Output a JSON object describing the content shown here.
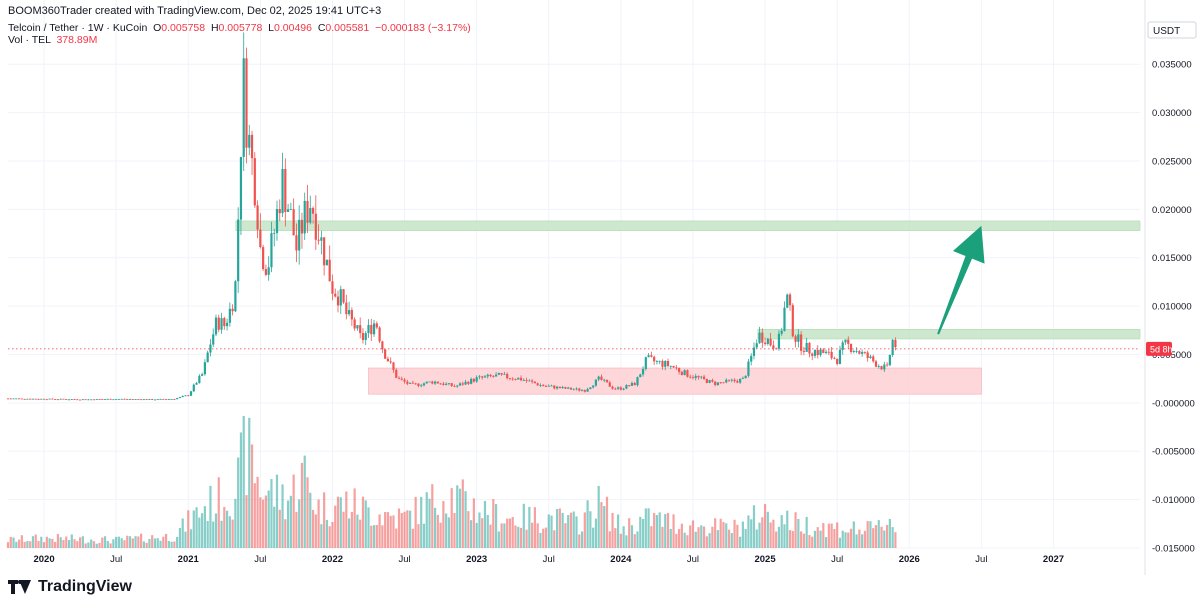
{
  "header": {
    "created_by": "BOOM360Trader created with TradingView.com, Dec 02, 2025 19:41 UTC+3"
  },
  "legend": {
    "symbol": "Telcoin / Tether · 1W · KuCoin",
    "o_label": "O",
    "o_value": "0.005758",
    "h_label": "H",
    "h_value": "0.005778",
    "l_label": "L",
    "l_value": "0.00496",
    "c_label": "C",
    "c_value": "0.005581",
    "change": "−0.000183 (−3.17%)",
    "vol_label": "Vol · TEL",
    "vol_value": "378.89M"
  },
  "price_axis": {
    "currency": "USDT",
    "ticks": [
      "0.035000",
      "0.030000",
      "0.025000",
      "0.020000",
      "0.015000",
      "0.010000",
      "0.005000",
      "-0.000000",
      "-0.005000",
      "-0.010000",
      "-0.015000"
    ],
    "last_price_tag": "5d 8h"
  },
  "time_axis": {
    "labels": [
      "2020",
      "Jul",
      "2021",
      "Jul",
      "2022",
      "Jul",
      "2023",
      "Jul",
      "2024",
      "Jul",
      "2025",
      "Jul",
      "2026",
      "Jul",
      "2027"
    ]
  },
  "footer": {
    "brand": "TradingView"
  },
  "colors": {
    "up": "#26a69a",
    "down": "#ef5350",
    "resistance_zone": "#c8e6c9",
    "support_zone": "#fdd3d7",
    "arrow": "#1aa07a",
    "last_price_tag": "#f23645"
  },
  "chart_data": {
    "type": "candlestick",
    "timeframe": "1W",
    "ylim": [
      -0.015,
      0.0375
    ],
    "x_range": [
      2019.75,
      2027.6
    ],
    "weekly_close_path": [
      [
        2019.75,
        0.00045
      ],
      [
        2020.0,
        0.0004
      ],
      [
        2020.3,
        0.00035
      ],
      [
        2020.5,
        0.0004
      ],
      [
        2020.75,
        0.00035
      ],
      [
        2020.9,
        0.0004
      ],
      [
        2021.0,
        0.0008
      ],
      [
        2021.05,
        0.002
      ],
      [
        2021.1,
        0.003
      ],
      [
        2021.15,
        0.006
      ],
      [
        2021.2,
        0.0085
      ],
      [
        2021.25,
        0.008
      ],
      [
        2021.3,
        0.01
      ],
      [
        2021.33,
        0.0125
      ],
      [
        2021.36,
        0.025
      ],
      [
        2021.38,
        0.034
      ],
      [
        2021.4,
        0.03
      ],
      [
        2021.43,
        0.026
      ],
      [
        2021.47,
        0.022
      ],
      [
        2021.5,
        0.016
      ],
      [
        2021.55,
        0.014
      ],
      [
        2021.6,
        0.018
      ],
      [
        2021.65,
        0.023
      ],
      [
        2021.7,
        0.02
      ],
      [
        2021.75,
        0.016
      ],
      [
        2021.8,
        0.019
      ],
      [
        2021.85,
        0.021
      ],
      [
        2021.9,
        0.018
      ],
      [
        2021.95,
        0.015
      ],
      [
        2022.0,
        0.012
      ],
      [
        2022.05,
        0.011
      ],
      [
        2022.1,
        0.009
      ],
      [
        2022.15,
        0.008
      ],
      [
        2022.2,
        0.0065
      ],
      [
        2022.25,
        0.0075
      ],
      [
        2022.3,
        0.0085
      ],
      [
        2022.35,
        0.0055
      ],
      [
        2022.4,
        0.004
      ],
      [
        2022.45,
        0.0025
      ],
      [
        2022.55,
        0.0018
      ],
      [
        2022.7,
        0.0022
      ],
      [
        2022.85,
        0.0017
      ],
      [
        2023.0,
        0.0025
      ],
      [
        2023.15,
        0.0028
      ],
      [
        2023.3,
        0.0025
      ],
      [
        2023.45,
        0.0018
      ],
      [
        2023.6,
        0.0015
      ],
      [
        2023.75,
        0.0013
      ],
      [
        2023.85,
        0.0025
      ],
      [
        2023.95,
        0.0015
      ],
      [
        2024.0,
        0.0015
      ],
      [
        2024.1,
        0.002
      ],
      [
        2024.18,
        0.0045
      ],
      [
        2024.25,
        0.0042
      ],
      [
        2024.35,
        0.0038
      ],
      [
        2024.45,
        0.003
      ],
      [
        2024.55,
        0.0025
      ],
      [
        2024.65,
        0.002
      ],
      [
        2024.75,
        0.0022
      ],
      [
        2024.85,
        0.0024
      ],
      [
        2024.9,
        0.0045
      ],
      [
        2024.95,
        0.007
      ],
      [
        2025.0,
        0.0068
      ],
      [
        2025.05,
        0.006
      ],
      [
        2025.1,
        0.0065
      ],
      [
        2025.15,
        0.011
      ],
      [
        2025.2,
        0.007
      ],
      [
        2025.25,
        0.006
      ],
      [
        2025.3,
        0.0055
      ],
      [
        2025.4,
        0.0052
      ],
      [
        2025.5,
        0.0045
      ],
      [
        2025.55,
        0.006
      ],
      [
        2025.6,
        0.0058
      ],
      [
        2025.7,
        0.0048
      ],
      [
        2025.8,
        0.0038
      ],
      [
        2025.85,
        0.0035
      ],
      [
        2025.88,
        0.0065
      ],
      [
        2025.92,
        0.0056
      ]
    ],
    "volume_profile": [
      [
        2019.75,
        0.08
      ],
      [
        2020.0,
        0.1
      ],
      [
        2020.5,
        0.08
      ],
      [
        2020.9,
        0.12
      ],
      [
        2021.1,
        0.4
      ],
      [
        2021.3,
        0.55
      ],
      [
        2021.36,
        0.7
      ],
      [
        2021.38,
        1.0
      ],
      [
        2021.45,
        0.85
      ],
      [
        2021.5,
        0.6
      ],
      [
        2021.7,
        0.5
      ],
      [
        2021.8,
        0.75
      ],
      [
        2021.9,
        0.4
      ],
      [
        2022.1,
        0.45
      ],
      [
        2022.3,
        0.35
      ],
      [
        2022.5,
        0.3
      ],
      [
        2022.8,
        0.55
      ],
      [
        2023.0,
        0.4
      ],
      [
        2023.2,
        0.3
      ],
      [
        2023.5,
        0.3
      ],
      [
        2023.7,
        0.25
      ],
      [
        2023.85,
        0.45
      ],
      [
        2024.0,
        0.2
      ],
      [
        2024.2,
        0.3
      ],
      [
        2024.5,
        0.22
      ],
      [
        2024.8,
        0.2
      ],
      [
        2025.0,
        0.35
      ],
      [
        2025.2,
        0.25
      ],
      [
        2025.5,
        0.2
      ],
      [
        2025.75,
        0.18
      ],
      [
        2025.88,
        0.3
      ],
      [
        2025.92,
        0.12
      ]
    ],
    "annotations": [
      {
        "type": "zone",
        "label": "resistance",
        "from_x": 2021.33,
        "to_x": 2027.6,
        "y_from": 0.0178,
        "y_to": 0.0188
      },
      {
        "type": "zone",
        "label": "near resistance",
        "from_x": 2024.95,
        "to_x": 2027.6,
        "y_from": 0.0066,
        "y_to": 0.0076
      },
      {
        "type": "zone",
        "label": "support",
        "from_x": 2022.25,
        "to_x": 2026.5,
        "y_from": 0.0009,
        "y_to": 0.0036
      },
      {
        "type": "arrow",
        "from": [
          2026.2,
          0.0071
        ],
        "to": [
          2026.5,
          0.0183
        ]
      },
      {
        "type": "hline",
        "y": 0.005581,
        "style": "dotted"
      }
    ]
  }
}
